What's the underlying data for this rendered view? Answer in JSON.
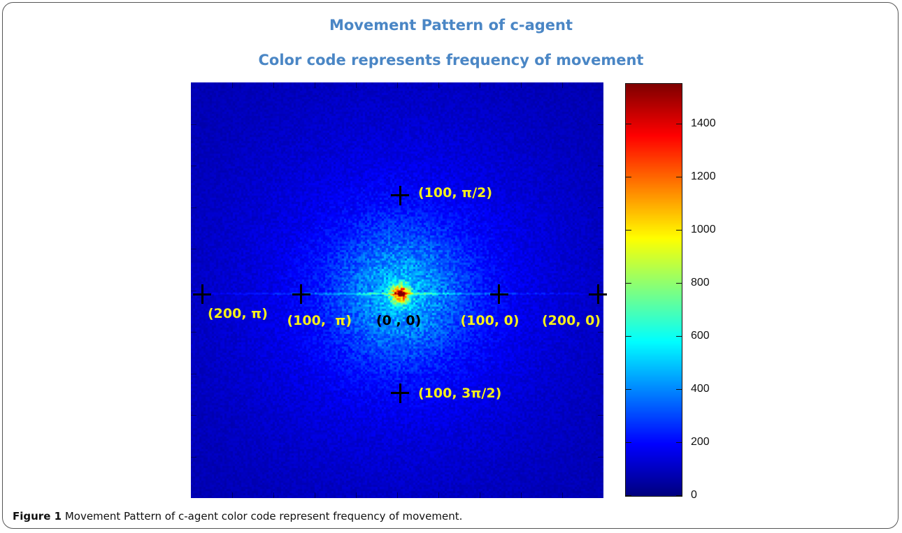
{
  "title": "Movement Pattern of c-agent",
  "subtitle": "Color code represents frequency of movement",
  "colors": {
    "title": "#4a86c5",
    "label_yellow": "#f6f01a",
    "label_black": "#000000"
  },
  "caption": {
    "label": "Figure 1",
    "text": "Movement Pattern of c-agent color code represent frequency of movement."
  },
  "chart_data": {
    "type": "heatmap",
    "title": "Movement Pattern of c-agent",
    "subtitle": "Color code represents frequency of movement",
    "colormap": "jet",
    "colorbar": {
      "min": 0,
      "max": 1550,
      "ticks": [
        0,
        200,
        400,
        600,
        800,
        1000,
        1200,
        1400
      ],
      "tick_labels": [
        "0",
        "200",
        "400",
        "600",
        "800",
        "1000",
        "1200",
        "1400"
      ]
    },
    "peak_value": 1550,
    "points": [
      {
        "label": "(0 , 0)",
        "r": 0,
        "theta": "0",
        "color": "black"
      },
      {
        "label": "(100, 0)",
        "r": 100,
        "theta": "0",
        "color": "yellow"
      },
      {
        "label": "(200, 0)",
        "r": 200,
        "theta": "0",
        "color": "yellow"
      },
      {
        "label": "(100,  π)",
        "r": 100,
        "theta": "π",
        "color": "yellow"
      },
      {
        "label": "(200, π)",
        "r": 200,
        "theta": "π",
        "color": "yellow"
      },
      {
        "label": "(100, π/2)",
        "r": 100,
        "theta": "π/2",
        "color": "yellow"
      },
      {
        "label": "(100, 3π/2)",
        "r": 100,
        "theta": "3π/2",
        "color": "yellow"
      }
    ]
  }
}
